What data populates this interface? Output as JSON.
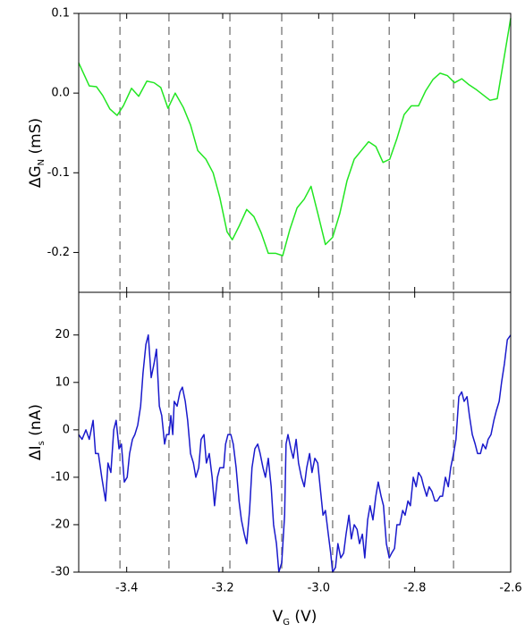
{
  "chart_data": [
    {
      "type": "line",
      "ylabel": {
        "main": "ΔG",
        "sub": "N",
        "unit": " (mS)"
      },
      "color": "#22e622",
      "xlim": [
        -3.5,
        -2.6
      ],
      "ylim": [
        -0.25,
        0.1
      ],
      "yticks": [
        {
          "value": 0.1,
          "label": "0.1"
        },
        {
          "value": 0,
          "label": "0.0"
        },
        -0.1,
        -0.2
      ],
      "vlines": [
        -3.414,
        -3.312,
        -3.185,
        -3.077,
        -2.971,
        -2.853,
        -2.719
      ],
      "x": [
        -3.5,
        -3.478,
        -3.463,
        -3.45,
        -3.435,
        -3.42,
        -3.407,
        -3.39,
        -3.375,
        -3.358,
        -3.343,
        -3.329,
        -3.314,
        -3.299,
        -3.282,
        -3.267,
        -3.252,
        -3.235,
        -3.22,
        -3.206,
        -3.191,
        -3.18,
        -3.165,
        -3.15,
        -3.135,
        -3.12,
        -3.105,
        -3.09,
        -3.075,
        -3.06,
        -3.045,
        -3.03,
        -3.016,
        -3.001,
        -2.986,
        -2.971,
        -2.956,
        -2.941,
        -2.926,
        -2.911,
        -2.896,
        -2.881,
        -2.866,
        -2.852,
        -2.837,
        -2.822,
        -2.807,
        -2.792,
        -2.777,
        -2.762,
        -2.747,
        -2.732,
        -2.717,
        -2.702,
        -2.688,
        -2.673,
        -2.658,
        -2.643,
        -2.628,
        -2.6
      ],
      "values": [
        0.038,
        0.009,
        0.008,
        -0.003,
        -0.02,
        -0.028,
        -0.016,
        0.006,
        -0.004,
        0.015,
        0.013,
        0.007,
        -0.019,
        0.0,
        -0.018,
        -0.04,
        -0.072,
        -0.083,
        -0.1,
        -0.131,
        -0.174,
        -0.184,
        -0.166,
        -0.146,
        -0.155,
        -0.175,
        -0.201,
        -0.201,
        -0.204,
        -0.171,
        -0.144,
        -0.133,
        -0.117,
        -0.153,
        -0.19,
        -0.181,
        -0.151,
        -0.11,
        -0.083,
        -0.072,
        -0.061,
        -0.067,
        -0.087,
        -0.083,
        -0.057,
        -0.027,
        -0.016,
        -0.016,
        0.003,
        0.017,
        0.025,
        0.022,
        0.013,
        0.018,
        0.011,
        0.005,
        -0.002,
        -0.009,
        -0.007,
        0.094
      ]
    },
    {
      "type": "line",
      "ylabel": {
        "main": "ΔI",
        "sub": "s",
        "unit": " (nA)"
      },
      "xlabel": {
        "main": "V",
        "sub": "G",
        "unit": " (V)"
      },
      "color": "#1a1acc",
      "xlim": [
        -3.5,
        -2.6
      ],
      "ylim": [
        -30,
        29
      ],
      "xticks": [
        -3.4,
        -3.2,
        {
          "value": -3,
          "label": "-3.0"
        },
        -2.8,
        -2.6
      ],
      "yticks": [
        20,
        10,
        0,
        -10,
        -20,
        -30
      ],
      "vlines": [
        -3.414,
        -3.312,
        -3.185,
        -3.077,
        -2.971,
        -2.853,
        -2.719
      ],
      "x": [
        -3.5,
        -3.493,
        -3.485,
        -3.478,
        -3.47,
        -3.465,
        -3.459,
        -3.452,
        -3.444,
        -3.439,
        -3.433,
        -3.427,
        -3.422,
        -3.416,
        -3.411,
        -3.405,
        -3.399,
        -3.394,
        -3.388,
        -3.383,
        -3.377,
        -3.371,
        -3.366,
        -3.36,
        -3.355,
        -3.349,
        -3.343,
        -3.338,
        -3.332,
        -3.327,
        -3.321,
        -3.317,
        -3.312,
        -3.308,
        -3.304,
        -3.301,
        -3.295,
        -3.289,
        -3.284,
        -3.278,
        -3.273,
        -3.267,
        -3.261,
        -3.256,
        -3.25,
        -3.245,
        -3.239,
        -3.234,
        -3.228,
        -3.222,
        -3.217,
        -3.211,
        -3.206,
        -3.198,
        -3.194,
        -3.189,
        -3.183,
        -3.178,
        -3.172,
        -3.166,
        -3.161,
        -3.155,
        -3.15,
        -3.144,
        -3.139,
        -3.133,
        -3.127,
        -3.122,
        -3.116,
        -3.111,
        -3.105,
        -3.099,
        -3.094,
        -3.088,
        -3.083,
        -3.077,
        -3.071,
        -3.068,
        -3.064,
        -3.058,
        -3.053,
        -3.047,
        -3.042,
        -3.036,
        -3.03,
        -3.025,
        -3.019,
        -3.014,
        -3.008,
        -3.002,
        -2.997,
        -2.991,
        -2.986,
        -2.98,
        -2.975,
        -2.971,
        -2.965,
        -2.96,
        -2.954,
        -2.948,
        -2.943,
        -2.937,
        -2.932,
        -2.926,
        -2.92,
        -2.915,
        -2.909,
        -2.904,
        -2.898,
        -2.893,
        -2.887,
        -2.881,
        -2.876,
        -2.87,
        -2.865,
        -2.859,
        -2.853,
        -2.848,
        -2.842,
        -2.837,
        -2.831,
        -2.825,
        -2.82,
        -2.814,
        -2.809,
        -2.803,
        -2.797,
        -2.792,
        -2.786,
        -2.781,
        -2.775,
        -2.77,
        -2.764,
        -2.758,
        -2.753,
        -2.747,
        -2.742,
        -2.736,
        -2.73,
        -2.725,
        -2.719,
        -2.714,
        -2.708,
        -2.702,
        -2.697,
        -2.691,
        -2.686,
        -2.68,
        -2.674,
        -2.669,
        -2.663,
        -2.658,
        -2.652,
        -2.647,
        -2.641,
        -2.635,
        -2.63,
        -2.624,
        -2.619,
        -2.613,
        -2.607,
        -2.6
      ],
      "values": [
        -1,
        -2,
        0,
        -2,
        2,
        -5,
        -5,
        -10,
        -15,
        -7,
        -9,
        0,
        2,
        -4,
        -3,
        -11,
        -10,
        -5,
        -2,
        -1,
        1,
        5,
        12,
        18,
        20,
        11,
        14,
        17,
        5,
        3,
        -3,
        -1,
        -1,
        3,
        -1,
        6,
        5,
        8,
        9,
        6,
        2,
        -5,
        -7,
        -10,
        -8,
        -2,
        -1,
        -7,
        -5,
        -10,
        -16,
        -10,
        -8,
        -8,
        -3,
        -1,
        -1,
        -3,
        -8,
        -15,
        -19,
        -22,
        -24,
        -17,
        -8,
        -4,
        -3,
        -5,
        -8,
        -10,
        -6,
        -12,
        -20,
        -24,
        -30,
        -28,
        -18,
        -3,
        -1,
        -4,
        -6,
        -2,
        -7,
        -10,
        -12,
        -8,
        -5,
        -9,
        -6,
        -7,
        -12,
        -18,
        -17,
        -22,
        -26,
        -30,
        -29,
        -24,
        -27,
        -26,
        -22,
        -18,
        -23,
        -20,
        -21,
        -24,
        -22,
        -27,
        -19,
        -16,
        -19,
        -14,
        -11,
        -14,
        -16,
        -24,
        -27,
        -26,
        -25,
        -20,
        -20,
        -17,
        -18,
        -15,
        -16,
        -10,
        -12,
        -9,
        -10,
        -12,
        -14,
        -12,
        -13,
        -15,
        -15,
        -14,
        -14,
        -10,
        -12,
        -8,
        -5,
        -2,
        7,
        8,
        6,
        7,
        3,
        -1,
        -3,
        -5,
        -5,
        -3,
        -4,
        -2,
        -1,
        2,
        4,
        6,
        10,
        14,
        19,
        20
      ]
    }
  ]
}
